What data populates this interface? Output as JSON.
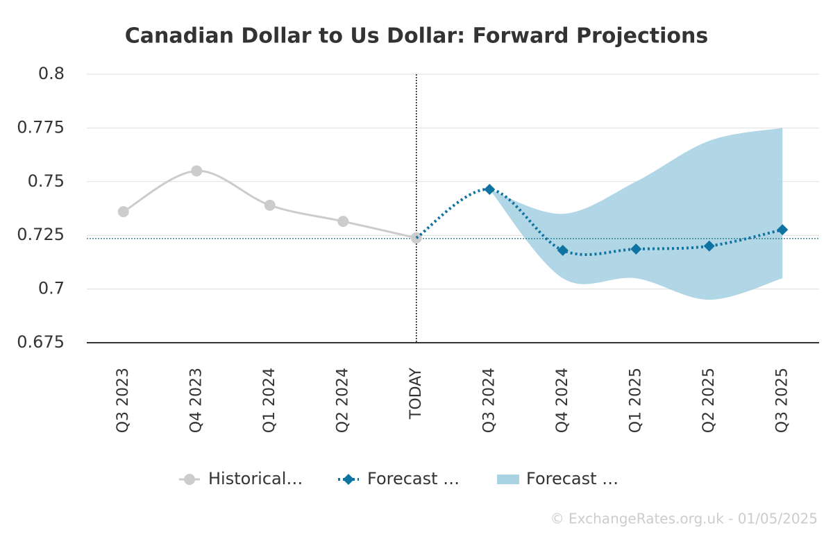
{
  "chart_data": {
    "type": "line",
    "title": "Canadian Dollar to Us Dollar: Forward Projections",
    "categories": [
      "Q3 2023",
      "Q4 2023",
      "Q1 2024",
      "Q2 2024",
      "TODAY",
      "Q3 2024",
      "Q4 2024",
      "Q1 2025",
      "Q2 2025",
      "Q3 2025"
    ],
    "series": [
      {
        "name": "Historical…",
        "color": "#cccccc",
        "values": [
          0.736,
          0.755,
          0.739,
          0.7315,
          0.7238,
          null,
          null,
          null,
          null,
          null
        ]
      },
      {
        "name": "Forecast …",
        "color": "#0e73a0",
        "values": [
          null,
          null,
          null,
          null,
          0.7238,
          0.7464,
          0.718,
          0.7186,
          0.72,
          0.7276
        ]
      },
      {
        "name": "Forecast …",
        "color": "#a9d2e2",
        "low": [
          null,
          null,
          null,
          null,
          null,
          0.7464,
          0.705,
          0.705,
          0.695,
          0.705
        ],
        "high": [
          null,
          null,
          null,
          null,
          null,
          0.7464,
          0.735,
          0.75,
          0.769,
          0.775
        ]
      }
    ],
    "current_rate": 0.7235,
    "ylim": [
      0.675,
      0.8
    ],
    "yticks": [
      0.675,
      0.7,
      0.725,
      0.75,
      0.775,
      0.8
    ],
    "grid": true,
    "legend": "bottom",
    "footer": "© ExchangeRates.org.uk - 01/05/2025"
  }
}
